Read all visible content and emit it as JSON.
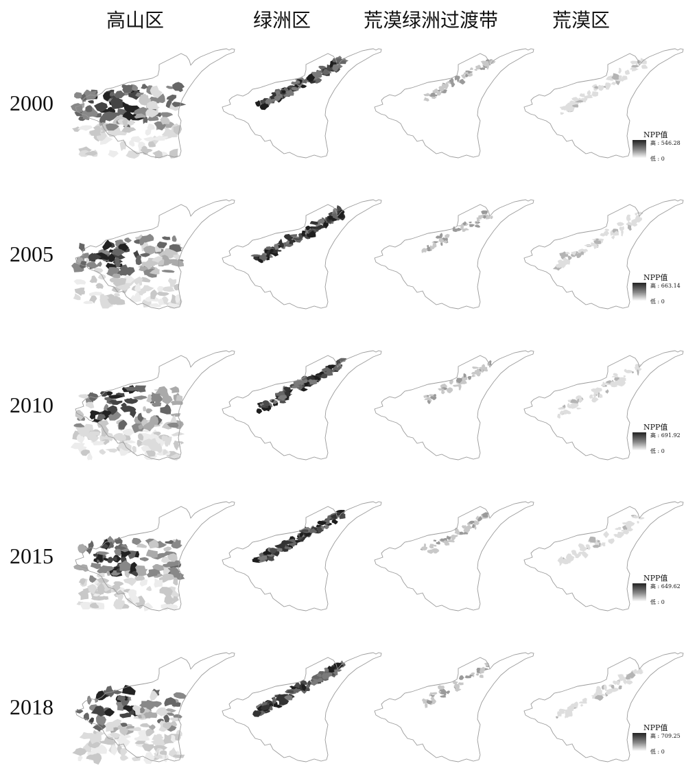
{
  "columns": [
    "高山区",
    "绿洲区",
    "荒漠绿洲过渡带",
    "荒漠区"
  ],
  "rows": [
    {
      "year": "2000",
      "legend": {
        "title": "NPP值",
        "high": "高 : 546.28",
        "low": "低 : 0"
      }
    },
    {
      "year": "2005",
      "legend": {
        "title": "NPP值",
        "high": "高 : 663.14",
        "low": "低 : 0"
      }
    },
    {
      "year": "2010",
      "legend": {
        "title": "NPP值",
        "high": "高 : 691.92",
        "low": "低 : 0"
      }
    },
    {
      "year": "2015",
      "legend": {
        "title": "NPP值",
        "high": "高 : 649.62",
        "low": "低 : 0"
      }
    },
    {
      "year": "2018",
      "legend": {
        "title": "NPP值",
        "high": "高 : 709.25",
        "low": "低 : 0"
      }
    }
  ],
  "colors": {
    "outline": "#9a9a9a",
    "npp_high": "#222222",
    "npp_low": "#fafafa"
  }
}
